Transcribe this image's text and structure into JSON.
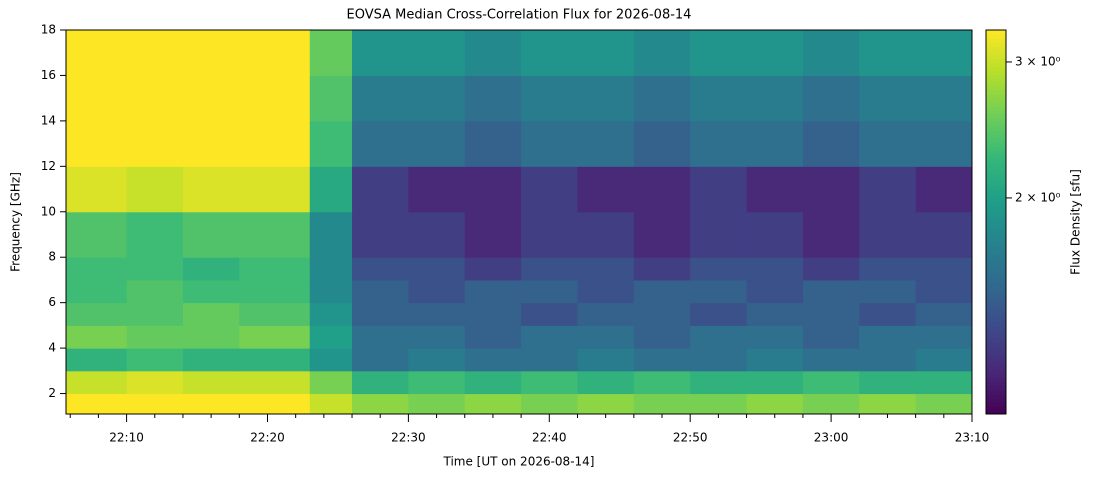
{
  "chart_data": {
    "type": "heatmap",
    "title": "EOVSA Median Cross-Correlation Flux for 2026-08-14",
    "xlabel": "Time [UT on 2026-08-14]",
    "ylabel": "Frequency [GHz]",
    "colorbar_label": "Flux Density [sfu]",
    "colormap": "viridis",
    "color_scale": "log",
    "x_edges": [
      1325.7,
      1330,
      1334,
      1338,
      1343,
      1346,
      1350,
      1354,
      1358,
      1362,
      1366,
      1370,
      1374,
      1378,
      1382,
      1386,
      1390
    ],
    "y_edges": [
      1.1,
      2,
      3,
      4,
      5,
      6,
      7,
      8,
      10,
      12,
      14,
      16,
      18
    ],
    "z": [
      [
        3.3,
        3.3,
        3.3,
        3.3,
        3.0,
        2.7,
        2.6,
        2.7,
        2.6,
        2.7,
        2.6,
        2.6,
        2.7,
        2.6,
        2.7,
        2.6
      ],
      [
        3.0,
        3.1,
        3.0,
        3.0,
        2.6,
        2.2,
        2.3,
        2.2,
        2.3,
        2.2,
        2.3,
        2.2,
        2.2,
        2.3,
        2.2,
        2.2
      ],
      [
        2.2,
        2.3,
        2.2,
        2.2,
        1.9,
        1.6,
        1.7,
        1.6,
        1.6,
        1.7,
        1.6,
        1.6,
        1.7,
        1.6,
        1.6,
        1.7
      ],
      [
        2.6,
        2.5,
        2.5,
        2.6,
        2.0,
        1.6,
        1.6,
        1.5,
        1.6,
        1.6,
        1.5,
        1.6,
        1.6,
        1.5,
        1.6,
        1.6
      ],
      [
        2.4,
        2.4,
        2.5,
        2.4,
        1.9,
        1.5,
        1.5,
        1.5,
        1.4,
        1.5,
        1.5,
        1.4,
        1.5,
        1.5,
        1.4,
        1.5
      ],
      [
        2.3,
        2.4,
        2.3,
        2.3,
        1.8,
        1.5,
        1.4,
        1.5,
        1.5,
        1.4,
        1.5,
        1.5,
        1.4,
        1.5,
        1.5,
        1.4
      ],
      [
        2.3,
        2.3,
        2.2,
        2.3,
        1.8,
        1.4,
        1.4,
        1.3,
        1.4,
        1.4,
        1.3,
        1.4,
        1.4,
        1.3,
        1.4,
        1.4
      ],
      [
        2.4,
        2.3,
        2.4,
        2.4,
        1.8,
        1.3,
        1.3,
        1.2,
        1.3,
        1.3,
        1.2,
        1.3,
        1.3,
        1.2,
        1.3,
        1.3
      ],
      [
        3.1,
        3.0,
        3.1,
        3.1,
        2.1,
        1.3,
        1.2,
        1.2,
        1.3,
        1.2,
        1.2,
        1.3,
        1.2,
        1.2,
        1.3,
        1.2
      ],
      [
        3.3,
        3.3,
        3.3,
        3.3,
        2.3,
        1.6,
        1.6,
        1.5,
        1.6,
        1.6,
        1.5,
        1.6,
        1.6,
        1.5,
        1.6,
        1.6
      ],
      [
        3.3,
        3.3,
        3.3,
        3.3,
        2.4,
        1.7,
        1.7,
        1.6,
        1.7,
        1.7,
        1.6,
        1.7,
        1.7,
        1.6,
        1.7,
        1.7
      ],
      [
        3.3,
        3.3,
        3.3,
        3.3,
        2.5,
        1.9,
        1.9,
        1.8,
        1.9,
        1.9,
        1.8,
        1.9,
        1.9,
        1.8,
        1.9,
        1.9
      ]
    ],
    "xlim": [
      1325.7,
      1390
    ],
    "xticks": [
      {
        "value": 1330,
        "label": "22:10"
      },
      {
        "value": 1340,
        "label": "22:20"
      },
      {
        "value": 1350,
        "label": "22:30"
      },
      {
        "value": 1360,
        "label": "22:40"
      },
      {
        "value": 1370,
        "label": "22:50"
      },
      {
        "value": 1380,
        "label": "23:00"
      },
      {
        "value": 1390,
        "label": "23:10"
      }
    ],
    "xminorticks": [
      1326,
      1328,
      1332,
      1334,
      1336,
      1338,
      1342,
      1344,
      1346,
      1348,
      1352,
      1354,
      1356,
      1358,
      1362,
      1364,
      1366,
      1368,
      1372,
      1374,
      1376,
      1378,
      1382,
      1384,
      1386,
      1388
    ],
    "ylim": [
      1.1,
      18
    ],
    "yticks": [
      2,
      4,
      6,
      8,
      10,
      12,
      14,
      16,
      18
    ],
    "clim": [
      1.05,
      3.3
    ],
    "cticks": [
      {
        "value": 2,
        "label": "2 × 10⁰"
      },
      {
        "value": 3,
        "label": "3 × 10⁰"
      }
    ]
  }
}
